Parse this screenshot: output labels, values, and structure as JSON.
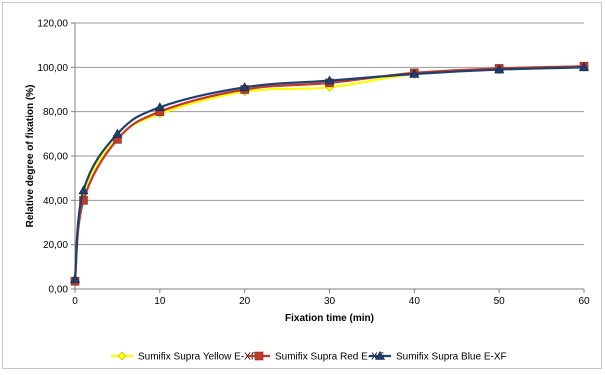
{
  "chart_data": {
    "type": "line",
    "title": "",
    "xlabel": "Fixation time (min)",
    "ylabel": "Relative degree of fixation (%)",
    "xlim": [
      0,
      60
    ],
    "ylim": [
      0,
      120
    ],
    "x_ticks": [
      "0",
      "10",
      "20",
      "30",
      "40",
      "50",
      "60"
    ],
    "y_ticks": [
      "0,00",
      "20,00",
      "40,00",
      "60,00",
      "80,00",
      "100,00",
      "120,00"
    ],
    "grid": "horizontal",
    "legend_position": "bottom",
    "x": [
      0,
      1,
      5,
      10,
      20,
      30,
      40,
      50,
      60
    ],
    "series": [
      {
        "name": "Sumifix Supra Yellow E-XF",
        "color": "#ffff00",
        "marker": "diamond",
        "values": [
          4,
          43,
          68,
          79,
          89,
          91,
          97,
          99,
          100
        ]
      },
      {
        "name": "Sumifix Supra Red E-XF",
        "color": "#c0392b",
        "marker": "square",
        "values": [
          3.5,
          40,
          67.5,
          80,
          90,
          93,
          97.5,
          99.5,
          100.5
        ]
      },
      {
        "name": "Sumifix Supra Blue E-XF",
        "color": "#1f3f6e",
        "marker": "triangle",
        "values": [
          4.5,
          44.5,
          70,
          82,
          91,
          94,
          97,
          99,
          100
        ]
      }
    ]
  }
}
